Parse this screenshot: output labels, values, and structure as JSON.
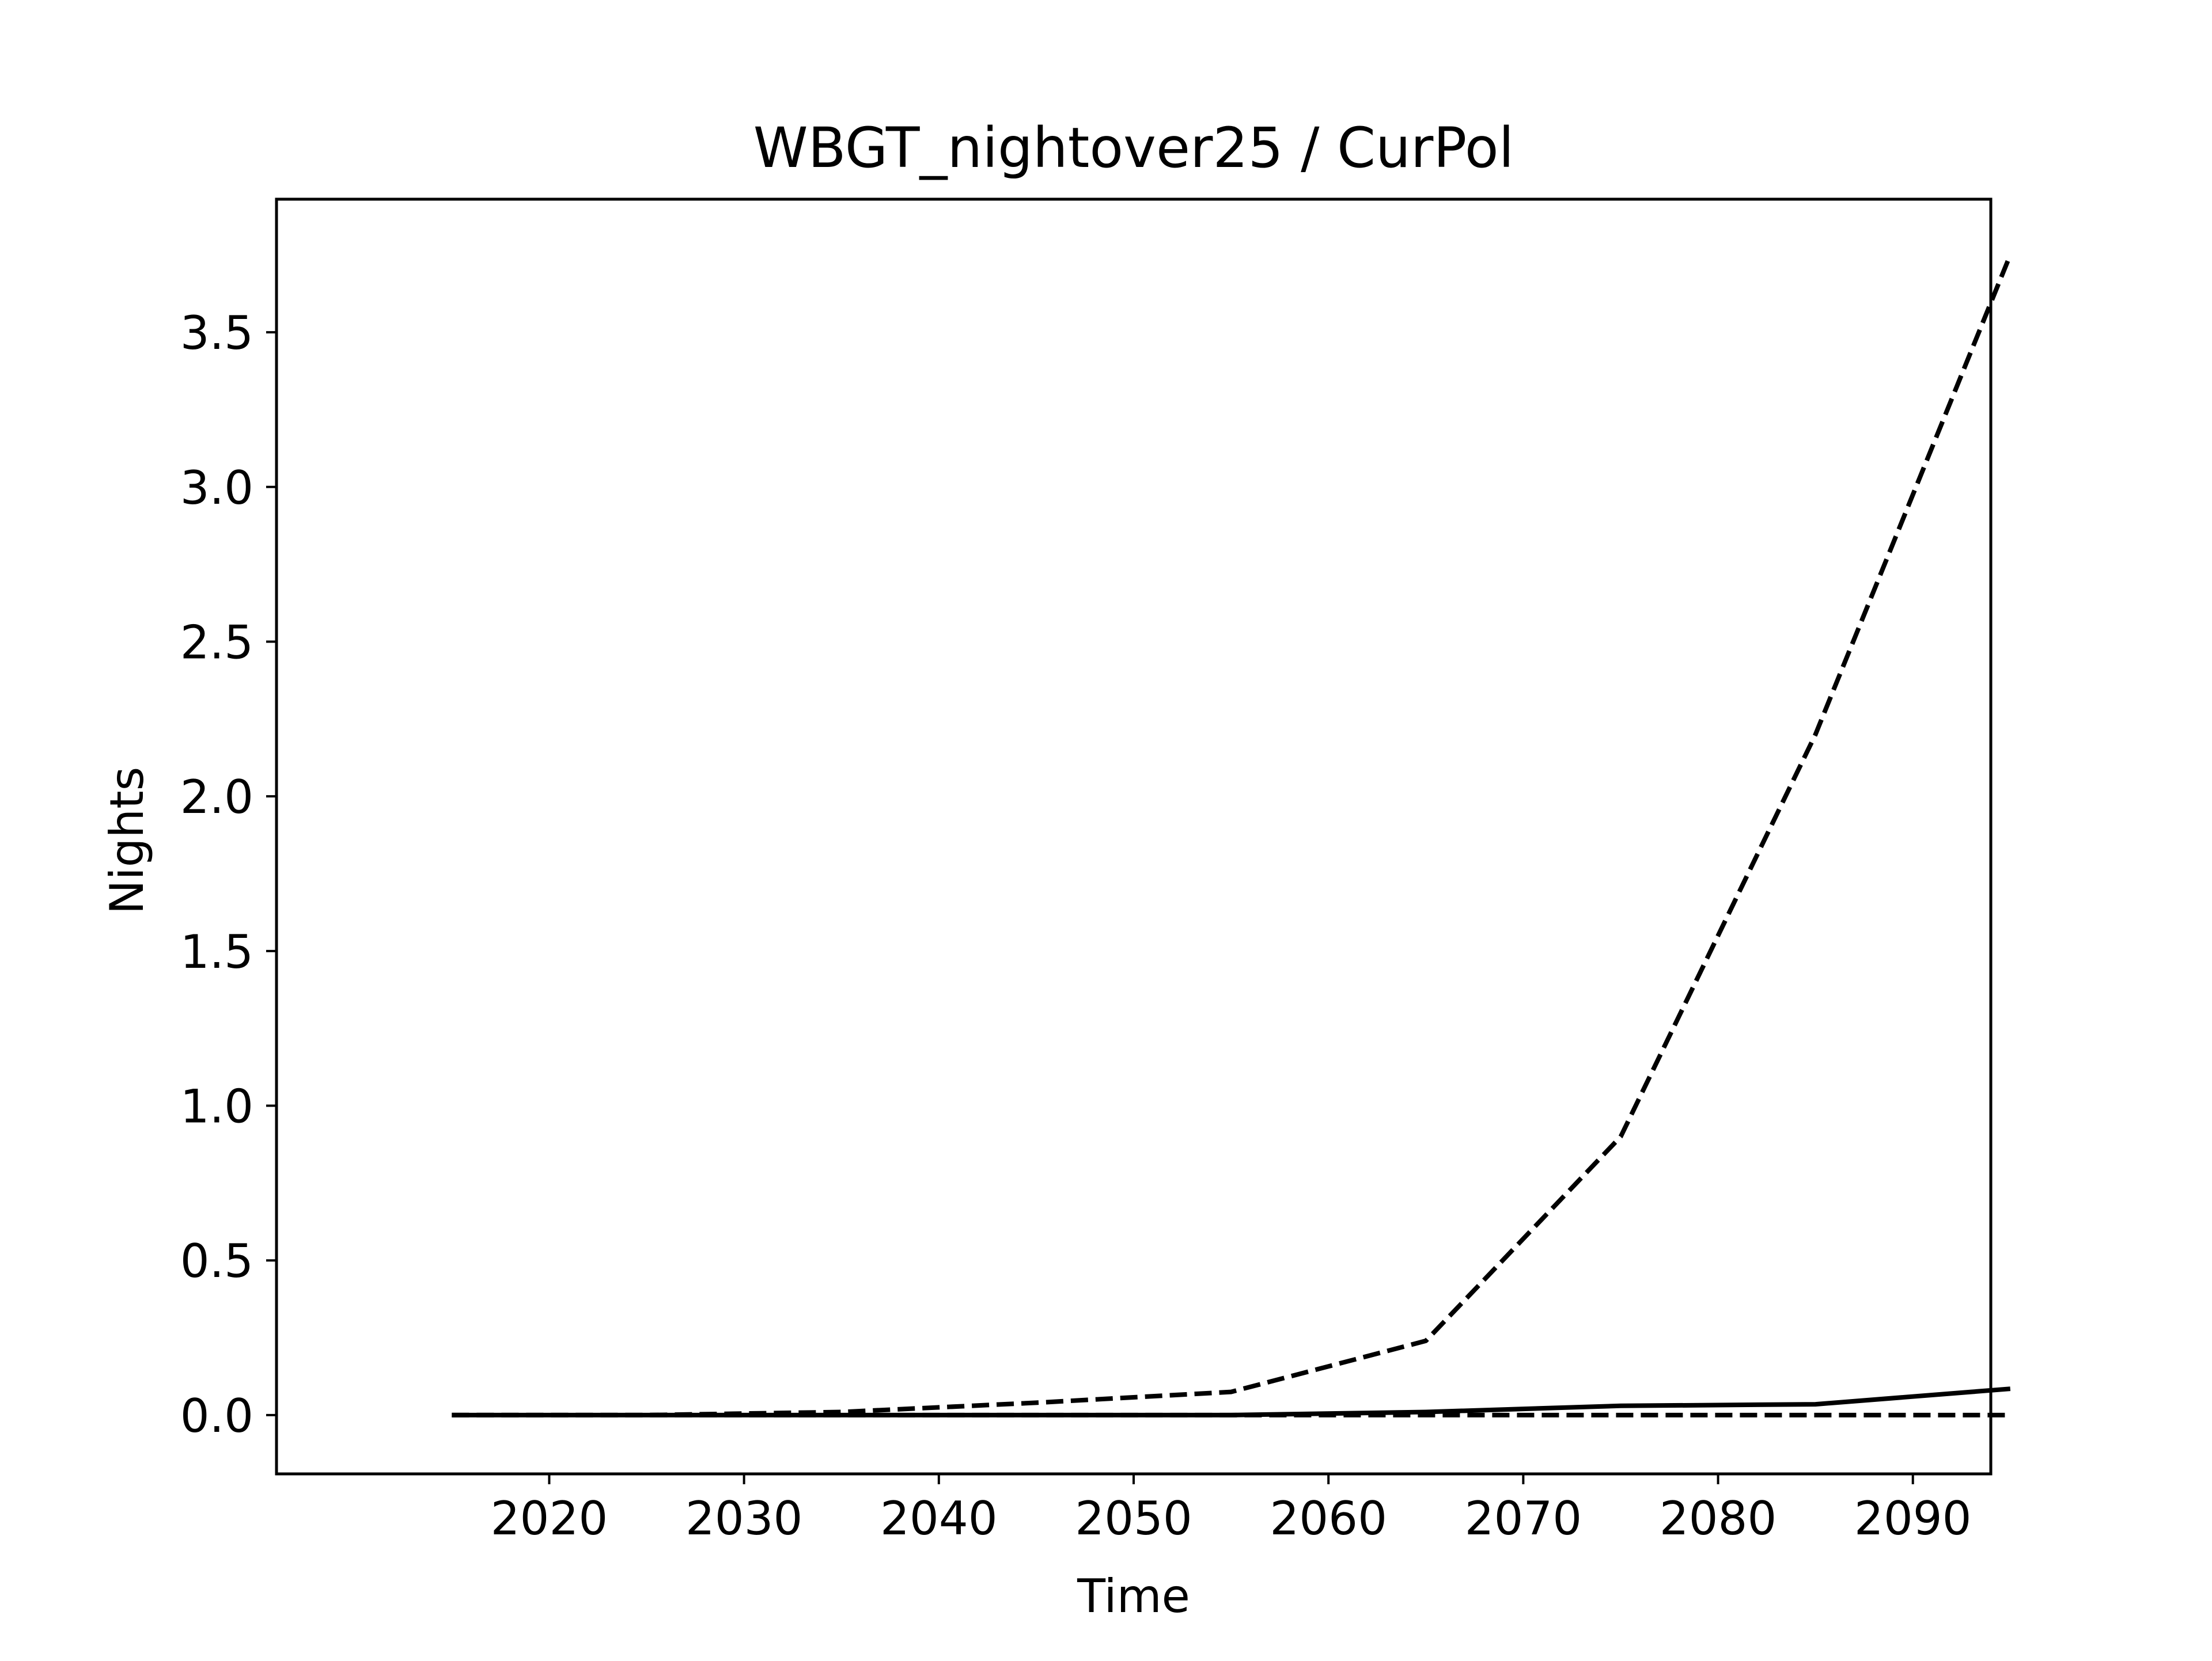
{
  "chart_data": {
    "type": "line",
    "title": "WBGT_nightover25 / CurPol",
    "xlabel": "Time",
    "ylabel": "Nights",
    "x": [
      2015,
      2025,
      2035,
      2045,
      2055,
      2065,
      2075,
      2085,
      2095
    ],
    "series": [
      {
        "style": "solid",
        "color": "#000000",
        "values": [
          0.0,
          0.0,
          0.0,
          0.0,
          0.0,
          0.01,
          0.03,
          0.035,
          0.085
        ]
      },
      {
        "style": "dashed",
        "color": "#000000",
        "values": [
          0.0,
          0.0,
          0.01,
          0.04,
          0.075,
          0.24,
          0.9,
          2.2,
          3.75
        ]
      },
      {
        "style": "dashed",
        "color": "#000000",
        "values": [
          0.0,
          0.0,
          0.0,
          0.0,
          0.0,
          0.0,
          0.0,
          0.0,
          0.0
        ]
      }
    ],
    "xlim": [
      2006,
      2094
    ],
    "ylim": [
      -0.19,
      3.93
    ],
    "xticks": [
      2020,
      2030,
      2040,
      2050,
      2060,
      2070,
      2080,
      2090
    ],
    "yticks": [
      0.0,
      0.5,
      1.0,
      1.5,
      2.0,
      2.5,
      3.0,
      3.5
    ],
    "ytick_labels": [
      "0.0",
      "0.5",
      "1.0",
      "1.5",
      "2.0",
      "2.5",
      "3.0",
      "3.5"
    ],
    "grid": false,
    "legend": "none"
  }
}
